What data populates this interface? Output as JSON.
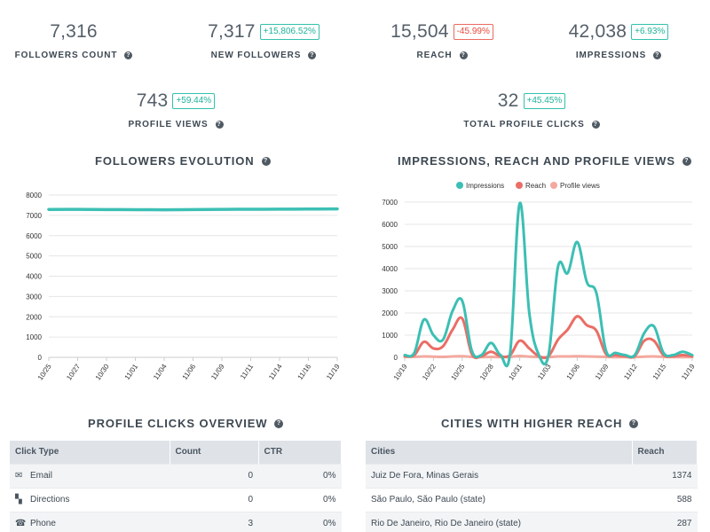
{
  "stats": {
    "followers_count": {
      "value": "7,316",
      "label": "FOLLOWERS COUNT"
    },
    "new_followers": {
      "value": "7,317",
      "badge": "+15,806.52%",
      "label": "NEW FOLLOWERS"
    },
    "reach": {
      "value": "15,504",
      "badge": "-45.99%",
      "label": "REACH"
    },
    "impressions": {
      "value": "42,038",
      "badge": "+6.93%",
      "label": "IMPRESSIONS"
    },
    "profile_views": {
      "value": "743",
      "badge": "+59.44%",
      "label": "PROFILE VIEWS"
    },
    "total_profile_clicks": {
      "value": "32",
      "badge": "+45.45%",
      "label": "TOTAL PROFILE CLICKS"
    }
  },
  "help_icon_glyph": "?",
  "colors": {
    "impressions": "#3cbfb4",
    "reach": "#ea6e66",
    "profile_views": "#f3a99f",
    "positive": "#1fb39a",
    "negative": "#e64a3c"
  },
  "sections": {
    "followers_evolution": "FOLLOWERS EVOLUTION",
    "impressions_reach_views": "IMPRESSIONS, REACH AND PROFILE VIEWS",
    "profile_clicks_overview": "PROFILE CLICKS OVERVIEW",
    "cities_higher_reach": "CITIES WITH HIGHER REACH"
  },
  "chart_data": [
    {
      "type": "line",
      "title": "FOLLOWERS EVOLUTION",
      "x_tick_labels": [
        "10/25",
        "10/27",
        "10/30",
        "11/01",
        "11/04",
        "11/06",
        "11/09",
        "11/11",
        "11/14",
        "11/16",
        "11/19"
      ],
      "ylim": [
        0,
        8000
      ],
      "y_ticks": [
        0,
        1000,
        2000,
        3000,
        4000,
        5000,
        6000,
        7000,
        8000
      ],
      "grid": true,
      "series": [
        {
          "values": [
            7290,
            7295,
            7285,
            7280,
            7275,
            7285,
            7295,
            7300,
            7305,
            7310,
            7316
          ]
        }
      ]
    },
    {
      "type": "line",
      "title": "IMPRESSIONS, REACH AND PROFILE VIEWS",
      "x_tick_labels": [
        "10/19",
        "10/22",
        "10/25",
        "10/28",
        "10/31",
        "11/03",
        "11/06",
        "11/09",
        "11/12",
        "11/15",
        "11/19"
      ],
      "ylim": [
        0,
        7000
      ],
      "y_ticks": [
        0,
        1000,
        2000,
        3000,
        4000,
        5000,
        6000,
        7000
      ],
      "grid": true,
      "legend_position": "top",
      "series": [
        {
          "name": "Impressions",
          "values": [
            100,
            200,
            1700,
            1000,
            800,
            2100,
            2550,
            300,
            100,
            650,
            100,
            200,
            6950,
            2000,
            100,
            100,
            4100,
            3800,
            5200,
            3400,
            2900,
            300,
            200,
            100,
            100,
            1100,
            1400,
            200,
            100,
            250,
            100
          ]
        },
        {
          "name": "Reach",
          "values": [
            50,
            100,
            700,
            400,
            500,
            1250,
            1750,
            150,
            50,
            250,
            50,
            100,
            750,
            400,
            50,
            50,
            800,
            1250,
            1850,
            1450,
            1200,
            150,
            100,
            50,
            50,
            750,
            750,
            100,
            50,
            100,
            50
          ]
        },
        {
          "name": "Profile views",
          "values": [
            20,
            20,
            40,
            30,
            20,
            40,
            50,
            20,
            10,
            20,
            10,
            20,
            60,
            30,
            10,
            10,
            40,
            40,
            50,
            40,
            30,
            20,
            10,
            10,
            10,
            30,
            40,
            20,
            10,
            10,
            10
          ]
        }
      ]
    }
  ],
  "profile_clicks": {
    "headers": [
      "Click Type",
      "Count",
      "CTR"
    ],
    "rows": [
      {
        "icon": "envelope-icon",
        "glyph": "✉",
        "type": "Email",
        "count": "0",
        "ctr": "0%"
      },
      {
        "icon": "map-icon",
        "glyph": "▚",
        "type": "Directions",
        "count": "0",
        "ctr": "0%"
      },
      {
        "icon": "phone-icon",
        "glyph": "☎",
        "type": "Phone",
        "count": "3",
        "ctr": "0%"
      }
    ]
  },
  "cities": {
    "headers": [
      "Cities",
      "Reach"
    ],
    "rows": [
      {
        "city": "Juiz De Fora, Minas Gerais",
        "reach": "1374"
      },
      {
        "city": "São Paulo, São Paulo (state)",
        "reach": "588"
      },
      {
        "city": "Rio De Janeiro, Rio De Janeiro (state)",
        "reach": "287"
      }
    ]
  }
}
